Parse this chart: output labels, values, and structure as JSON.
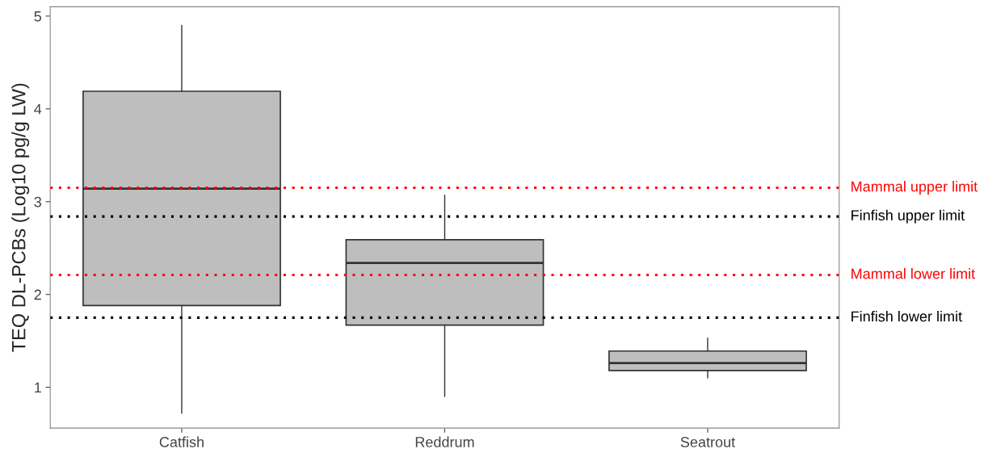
{
  "chart_data": {
    "type": "box",
    "ylabel": "TEQ DL-PCBs (Log10 pg/g LW)",
    "categories": [
      "Catfish",
      "Reddrum",
      "Seatrout"
    ],
    "color": "#bebebe",
    "boxes": [
      {
        "low": 0.72,
        "q1": 1.88,
        "median": 3.14,
        "q3": 4.19,
        "high": 4.9
      },
      {
        "low": 0.9,
        "q1": 1.67,
        "median": 2.34,
        "q3": 2.59,
        "high": 3.07
      },
      {
        "low": 1.1,
        "q1": 1.18,
        "median": 1.26,
        "q3": 1.39,
        "high": 1.53
      }
    ],
    "ylim": [
      0.56,
      5.1
    ],
    "yticks": [
      1,
      2,
      3,
      4,
      5
    ],
    "grid": false,
    "ref_lines": [
      {
        "axis": "y",
        "value": 3.15,
        "label": "Mammal upper limit",
        "color": "#ff0000",
        "line_style": "dotted"
      },
      {
        "axis": "y",
        "value": 2.84,
        "label": "Finfish upper limit",
        "color": "#000000",
        "line_style": "dotted"
      },
      {
        "axis": "y",
        "value": 2.21,
        "label": "Mammal lower limit",
        "color": "#ff0000",
        "line_style": "dotted"
      },
      {
        "axis": "y",
        "value": 1.75,
        "label": "Finfish lower limit",
        "color": "#000000",
        "line_style": "dotted"
      }
    ]
  }
}
